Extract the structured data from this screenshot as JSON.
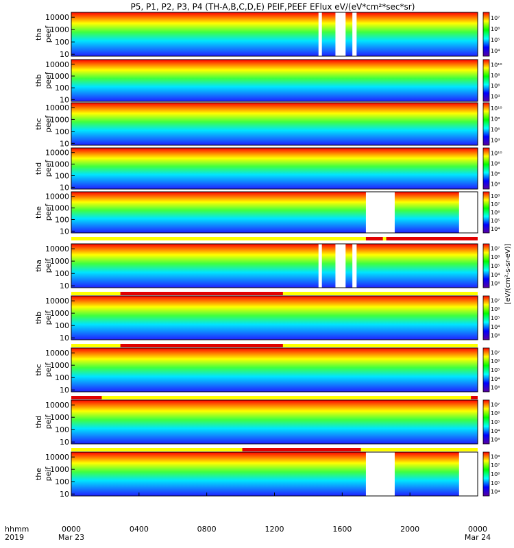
{
  "chart_data": {
    "type": "heatmap",
    "title": "P5, P1, P2, P3, P4 (TH-A,B,C,D,E) PEIF,PEEF EFlux eV/(eV*cm²*sec*sr)",
    "x_axis_label": "hhmm",
    "year_label": "2019",
    "x_ticks": [
      "0000",
      "0400",
      "0800",
      "1200",
      "1600",
      "2000",
      "0000"
    ],
    "x_date_labels": [
      "Mar 23",
      "",
      "",
      "",
      "",
      "",
      "Mar 24"
    ],
    "x_range_hours": [
      0,
      24
    ],
    "y_ticks": [
      "10",
      "100",
      "1000",
      "10000"
    ],
    "y_scale": "log",
    "y_range_eV": [
      7,
      25000
    ],
    "colorbar_label": "[eV/(cm²-s-sr-eV)]",
    "colorbar_scale": "log",
    "panels": [
      {
        "label": [
          "tha",
          "peef"
        ],
        "cb_ticks": [
          "10⁴",
          "10⁵",
          "10⁶",
          "10⁷"
        ],
        "gaps_hours": [
          [
            14.6,
            14.8
          ],
          [
            15.6,
            16.2
          ],
          [
            16.6,
            16.85
          ]
        ]
      },
      {
        "label": [
          "thb",
          "peef"
        ],
        "cb_ticks": [
          "10⁴",
          "10⁶",
          "10⁸",
          "10¹⁰"
        ],
        "gaps_hours": []
      },
      {
        "label": [
          "thc",
          "peef"
        ],
        "cb_ticks": [
          "10⁴",
          "10⁶",
          "10⁸",
          "10¹⁰"
        ],
        "gaps_hours": []
      },
      {
        "label": [
          "thd",
          "peef"
        ],
        "cb_ticks": [
          "10⁴",
          "10⁶",
          "10⁸",
          "10¹⁰"
        ],
        "gaps_hours": []
      },
      {
        "label": [
          "the",
          "peef"
        ],
        "cb_ticks": [
          "10⁴",
          "10⁵",
          "10⁶",
          "10⁷",
          "10⁸"
        ],
        "gaps_hours": [
          [
            17.4,
            19.1
          ],
          [
            22.9,
            24
          ]
        ]
      },
      {
        "label": [
          "tha",
          "peif"
        ],
        "cb_ticks": [
          "10³",
          "10⁴",
          "10⁵",
          "10⁶",
          "10⁷"
        ],
        "gaps_hours": [
          [
            14.6,
            14.8
          ],
          [
            15.6,
            16.2
          ],
          [
            16.6,
            16.85
          ]
        ]
      },
      {
        "label": [
          "thb",
          "peif"
        ],
        "cb_ticks": [
          "10³",
          "10⁴",
          "10⁵",
          "10⁶",
          "10⁷"
        ],
        "gaps_hours": []
      },
      {
        "label": [
          "thc",
          "peif"
        ],
        "cb_ticks": [
          "10³",
          "10⁴",
          "10⁵",
          "10⁶",
          "10⁷"
        ],
        "gaps_hours": []
      },
      {
        "label": [
          "thd",
          "peif"
        ],
        "cb_ticks": [
          "10³",
          "10⁴",
          "10⁵",
          "10⁶",
          "10⁷"
        ],
        "gaps_hours": []
      },
      {
        "label": [
          "the",
          "peif"
        ],
        "cb_ticks": [
          "10⁴",
          "10⁵",
          "10⁶",
          "10⁷",
          "10⁸"
        ],
        "gaps_hours": [
          [
            17.4,
            19.1
          ],
          [
            22.9,
            24
          ]
        ]
      }
    ],
    "state_bars": [
      {
        "segments_red_hours": [
          [
            17.4,
            18.4
          ],
          [
            18.6,
            24
          ]
        ]
      },
      {
        "segments_red_hours": [
          [
            2.9,
            12.5
          ]
        ]
      },
      {
        "segments_red_hours": [
          [
            2.9,
            12.5
          ]
        ]
      },
      {
        "segments_red_hours": [
          [
            0,
            1.8
          ],
          [
            23.6,
            24
          ]
        ]
      },
      {
        "segments_red_hours": [
          [
            10.1,
            17.1
          ]
        ]
      }
    ]
  }
}
